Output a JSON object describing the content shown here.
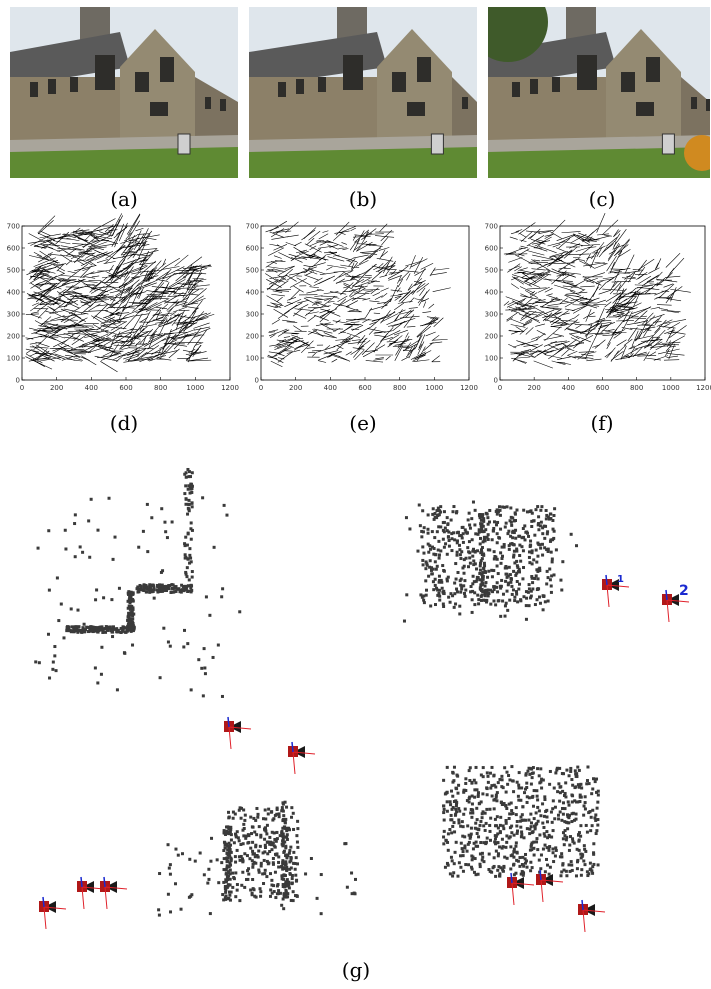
{
  "captions": {
    "a": "(a)",
    "b": "(b)",
    "c": "(c)",
    "d": "(d)",
    "e": "(e)",
    "f": "(f)",
    "g": "(g)"
  },
  "chart_data": [
    {
      "type": "scatter",
      "panel": "(d)",
      "title": "",
      "xlabel": "",
      "ylabel": "",
      "xlim": [
        0,
        1200
      ],
      "ylim": [
        0,
        700
      ],
      "xticks": [
        "0",
        "200",
        "400",
        "600",
        "800",
        "1000",
        "1200"
      ],
      "yticks": [
        "0",
        "100",
        "200",
        "300",
        "400",
        "500",
        "600",
        "700"
      ],
      "grid": false,
      "style": "dense black motion vectors"
    },
    {
      "type": "scatter",
      "panel": "(e)",
      "title": "",
      "xlabel": "",
      "ylabel": "",
      "xlim": [
        0,
        1200
      ],
      "ylim": [
        0,
        700
      ],
      "xticks": [
        "0",
        "200",
        "400",
        "600",
        "800",
        "1000",
        "1200"
      ],
      "yticks": [
        "0",
        "100",
        "200",
        "300",
        "400",
        "500",
        "600",
        "700"
      ],
      "grid": false,
      "style": "black motion vectors"
    },
    {
      "type": "scatter",
      "panel": "(f)",
      "title": "",
      "xlabel": "",
      "ylabel": "",
      "xlim": [
        0,
        1200
      ],
      "ylim": [
        0,
        700
      ],
      "xticks": [
        "0",
        "200",
        "400",
        "600",
        "800",
        "1000",
        "1200"
      ],
      "yticks": [
        "0",
        "100",
        "200",
        "300",
        "400",
        "500",
        "600",
        "700"
      ],
      "grid": false,
      "style": "black motion vectors"
    }
  ],
  "reconstruction_labels": [
    "1",
    "2"
  ],
  "colors": {
    "sky": "#dfe6ec",
    "roof": "#5a5a5a",
    "stone": "#8c8068",
    "grass": "#5f8a33",
    "path": "#a9a59b",
    "point": "#3a3a3a",
    "camera_red": "#b01818",
    "axis_red": "#e0202a",
    "axis_blue": "#1a2ad0"
  }
}
